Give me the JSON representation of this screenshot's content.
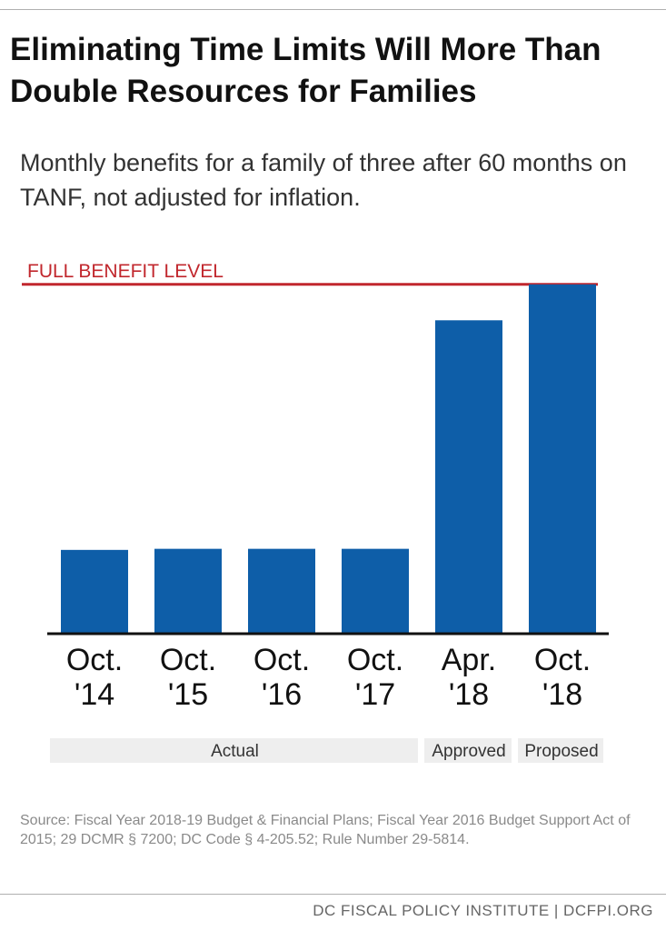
{
  "header": {
    "title": "Eliminating Time Limits Will More Than Double Resources for Families",
    "subtitle": "Monthly benefits for a family of three after 60 months on TANF, not adjusted for inflation."
  },
  "colors": {
    "bar": "#0e5ea8",
    "reference_line": "#c1272d"
  },
  "chart_data": {
    "type": "bar",
    "categories": [
      [
        "Oct.",
        "'14"
      ],
      [
        "Oct.",
        "'15"
      ],
      [
        "Oct.",
        "'16"
      ],
      [
        "Oct.",
        "'17"
      ],
      [
        "Apr.",
        "'18"
      ],
      [
        "Oct.",
        "'18"
      ]
    ],
    "values": [
      154,
      156,
      156,
      156,
      576,
      642
    ],
    "ylim": [
      0,
      650
    ],
    "grid": false,
    "reference_line": {
      "label": "FULL BENEFIT LEVEL",
      "value": 642
    },
    "groups": [
      {
        "label": "Actual",
        "span": [
          0,
          3
        ]
      },
      {
        "label": "Approved",
        "span": [
          4,
          4
        ]
      },
      {
        "label": "Proposed",
        "span": [
          5,
          5
        ]
      }
    ]
  },
  "source": "Source: Fiscal Year 2018-19 Budget & Financial Plans; Fiscal Year 2016 Budget Support Act of 2015; 29 DCMR § 7200; DC Code § 4-205.52; Rule Number 29-5814.",
  "footer": "DC FISCAL POLICY INSTITUTE | DCFPI.ORG"
}
